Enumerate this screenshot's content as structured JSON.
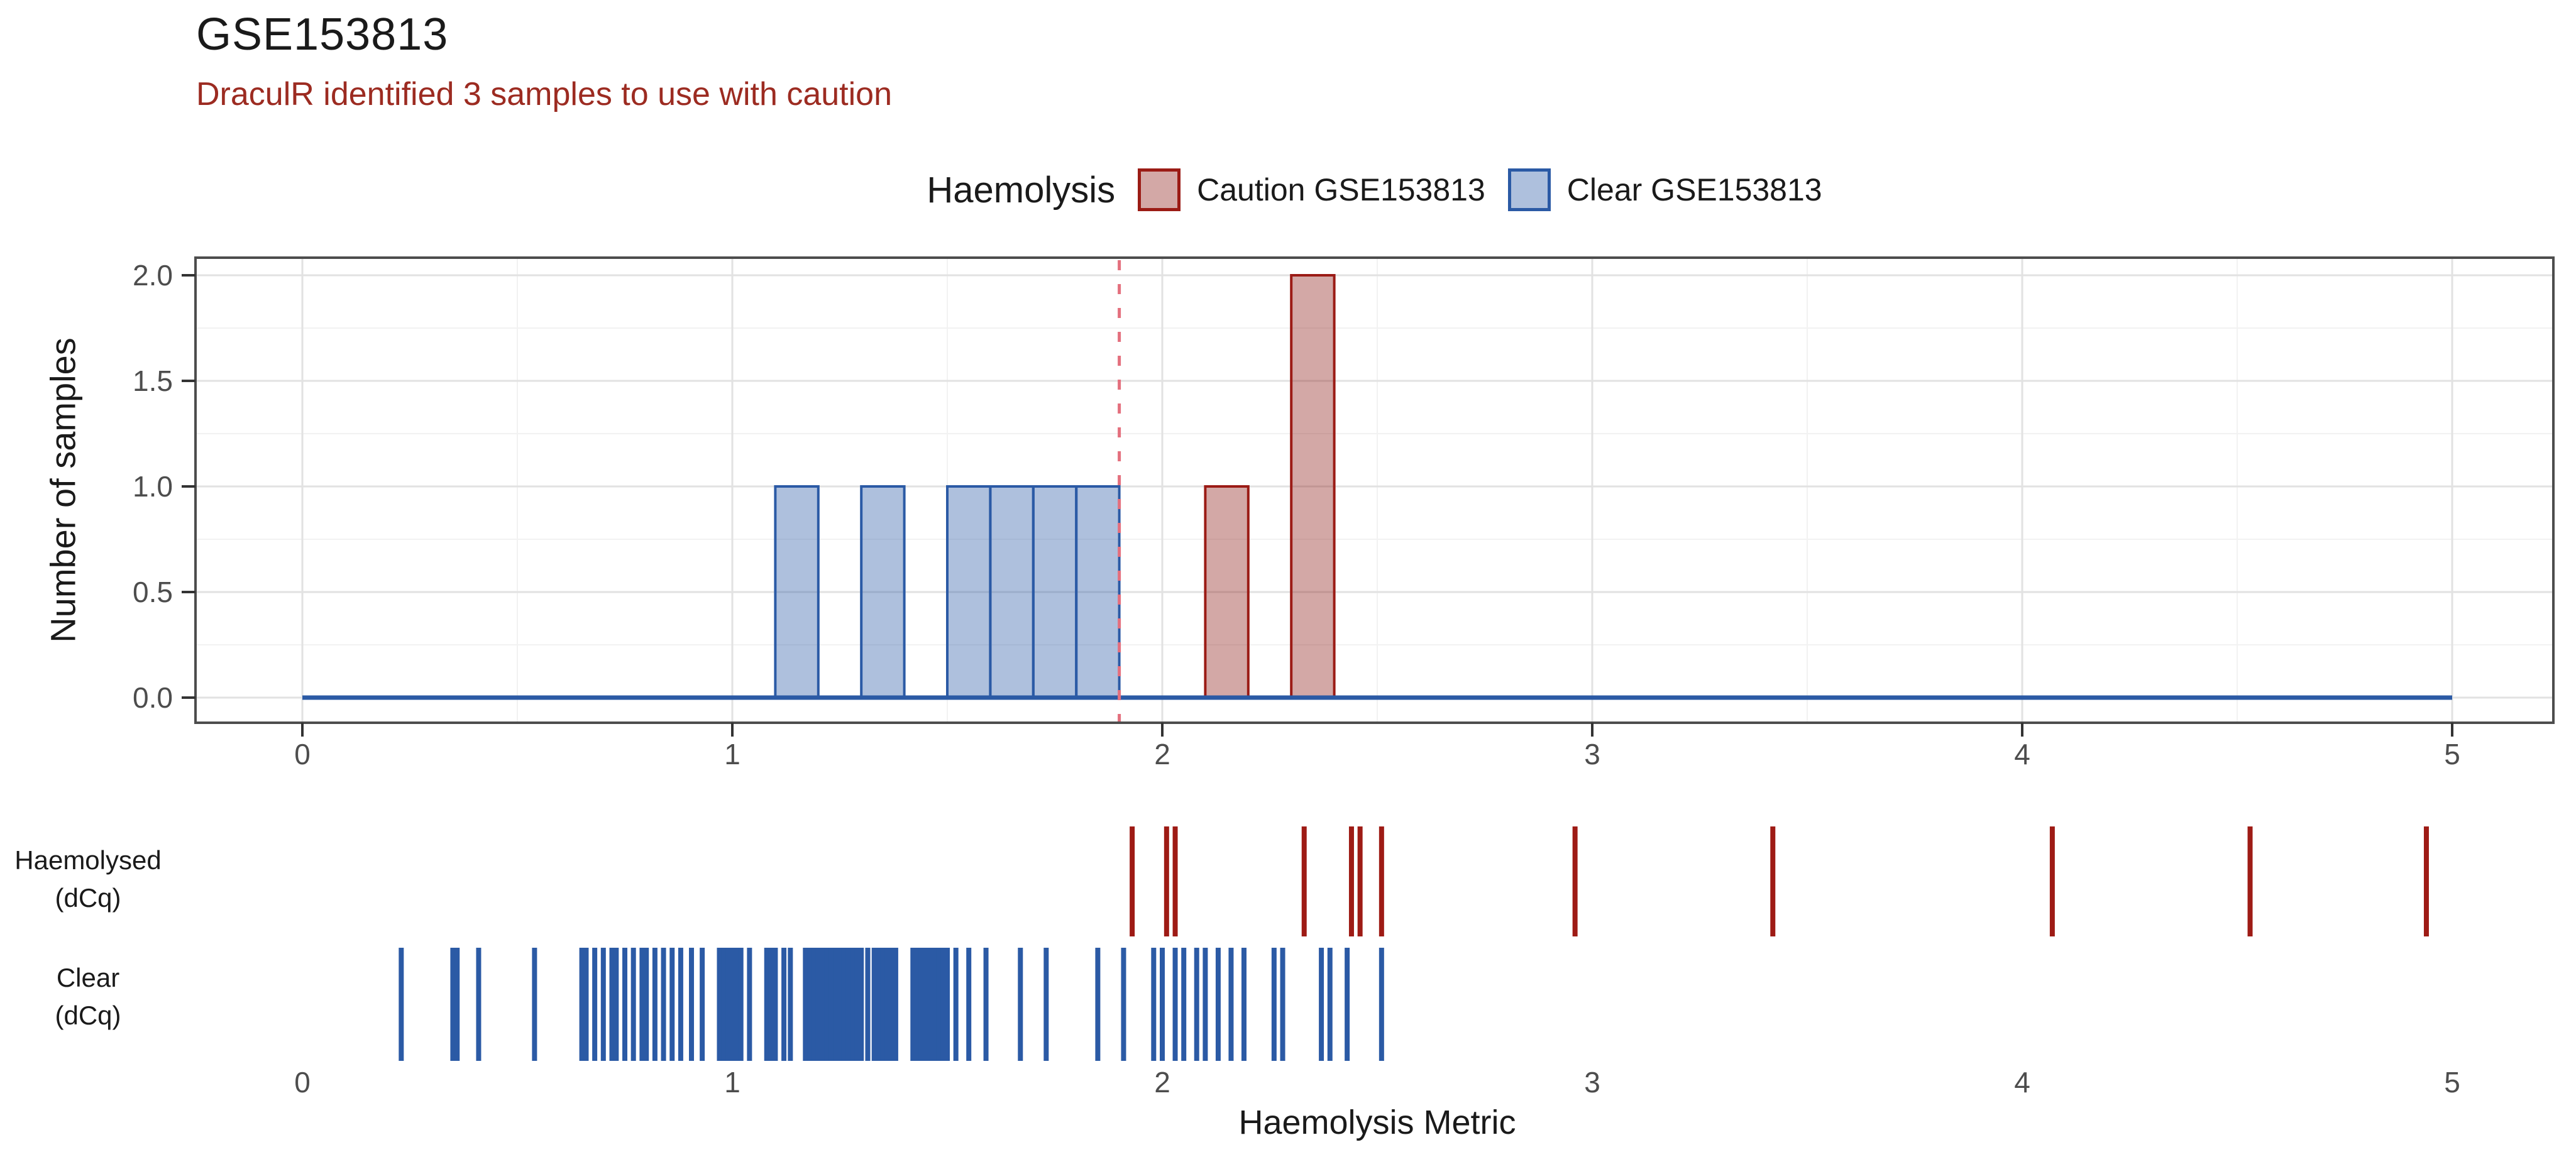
{
  "header": {
    "title": "GSE153813",
    "subtitle": "DraculR identified 3 samples to use with caution"
  },
  "legend": {
    "title": "Haemolysis",
    "items": [
      {
        "label": "Caution GSE153813",
        "fill": "rgba(140,25,20,0.38)",
        "stroke": "#9B1B15"
      },
      {
        "label": "Clear GSE153813",
        "fill": "rgba(43,90,165,0.38)",
        "stroke": "#2B5AA5"
      }
    ]
  },
  "colors": {
    "grid_major": "#E2E2E2",
    "grid_minor": "#F2F2F2",
    "panel_border": "#4D4D4D",
    "tick": "#333333",
    "tick_label": "#4D4D4D",
    "baseline": "#2B5AA5"
  },
  "chart_data": [
    {
      "type": "bar",
      "title": "Histogram of haemolysis metric per sample",
      "ylabel": "Number of samples",
      "xlabel": "",
      "xlim": [
        0,
        5
      ],
      "ylim": [
        0,
        2
      ],
      "binwidth": 0.1,
      "grid": {
        "x_minor": [
          0.5,
          1.5,
          2.5,
          3.5,
          4.5
        ],
        "y_minor": [
          0.25,
          0.75,
          1.25,
          1.75
        ]
      },
      "x_ticks": [
        0,
        1,
        2,
        3,
        4,
        5
      ],
      "x_tick_labels": [
        "0",
        "1",
        "2",
        "3",
        "4",
        "5"
      ],
      "y_ticks": [
        0,
        0.5,
        1,
        1.5,
        2
      ],
      "y_tick_labels": [
        "0.0",
        "0.5",
        "1.0",
        "1.5",
        "2.0"
      ],
      "legend_position": "top",
      "series": [
        {
          "name": "Clear GSE153813",
          "key": "clear",
          "stroke": "#2B5AA5",
          "fill": "rgba(43,90,165,0.38)",
          "bins": [
            {
              "x": 1.1,
              "count": 1
            },
            {
              "x": 1.3,
              "count": 1
            },
            {
              "x": 1.5,
              "count": 1
            },
            {
              "x": 1.6,
              "count": 1
            },
            {
              "x": 1.7,
              "count": 1
            },
            {
              "x": 1.8,
              "count": 1
            }
          ]
        },
        {
          "name": "Caution GSE153813",
          "key": "caution",
          "stroke": "#9B1B15",
          "fill": "rgba(140,25,20,0.38)",
          "bins": [
            {
              "x": 2.1,
              "count": 1
            },
            {
              "x": 2.3,
              "count": 2
            }
          ]
        }
      ],
      "baseline_range": [
        0,
        5
      ],
      "vline": {
        "x": 1.9,
        "style": "dashed",
        "color": "#E4707E"
      }
    },
    {
      "type": "rug",
      "xlabel": "Haemolysis Metric",
      "x_ticks": [
        0,
        1,
        2,
        3,
        4,
        5
      ],
      "x_tick_labels": [
        "0",
        "1",
        "2",
        "3",
        "4",
        "5"
      ],
      "rows": [
        {
          "key": "haemolysed",
          "label_lines": [
            "Haemolysed",
            "(dCq)"
          ],
          "color": "#9E1B15",
          "values": [
            1.93,
            2.01,
            2.03,
            2.33,
            2.44,
            2.46,
            2.51,
            2.96,
            3.42,
            4.07,
            4.53,
            4.94
          ]
        },
        {
          "key": "clear",
          "label_lines": [
            "Clear",
            "(dCq)"
          ],
          "color": "#2B5AA5",
          "values": [
            0.23,
            0.35,
            0.36,
            0.41,
            0.54,
            0.65,
            0.66,
            0.68,
            0.7,
            0.72,
            0.73,
            0.75,
            0.77,
            0.79,
            0.8,
            0.82,
            0.84,
            0.86,
            0.88,
            0.905,
            0.93,
            0.97,
            0.98,
            0.99,
            1.0,
            1.01,
            1.02,
            1.04,
            1.08,
            1.09,
            1.1,
            1.12,
            1.135,
            1.17,
            1.18,
            1.19,
            1.2,
            1.21,
            1.22,
            1.23,
            1.24,
            1.25,
            1.26,
            1.27,
            1.28,
            1.29,
            1.3,
            1.315,
            1.33,
            1.34,
            1.35,
            1.36,
            1.37,
            1.38,
            1.42,
            1.43,
            1.44,
            1.45,
            1.46,
            1.47,
            1.48,
            1.49,
            1.5,
            1.52,
            1.55,
            1.59,
            1.67,
            1.73,
            1.85,
            1.91,
            1.98,
            2.0,
            2.03,
            2.05,
            2.08,
            2.1,
            2.13,
            2.16,
            2.19,
            2.26,
            2.28,
            2.37,
            2.39,
            2.43,
            2.51
          ]
        }
      ]
    }
  ]
}
